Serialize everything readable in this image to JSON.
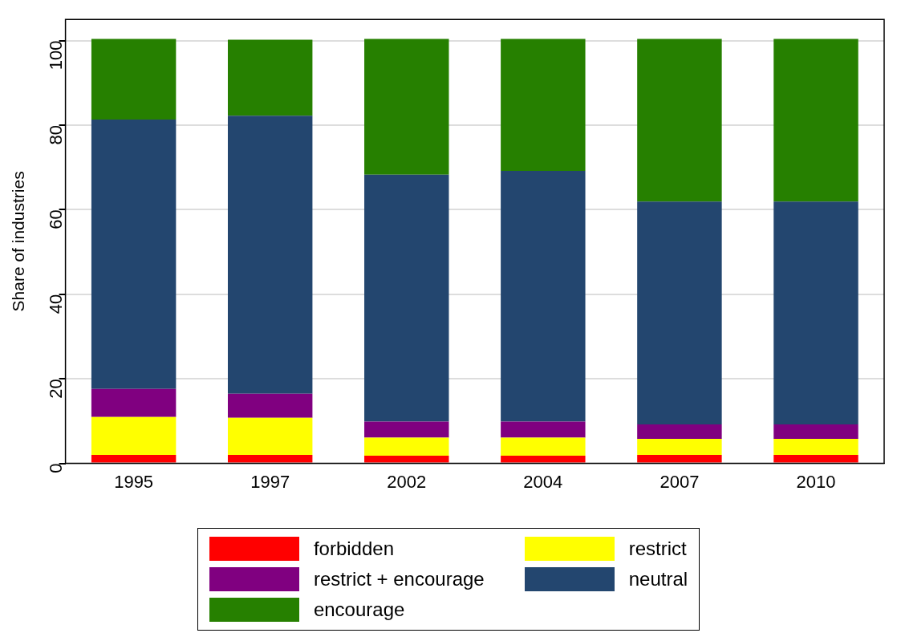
{
  "chart_data": {
    "type": "bar",
    "stacked": true,
    "ylabel": "Share of industries",
    "categories": [
      "1995",
      "1997",
      "2002",
      "2004",
      "2007",
      "2010"
    ],
    "ylim": [
      0,
      105
    ],
    "yticks": [
      0,
      20,
      40,
      60,
      80,
      100
    ],
    "grid": "y",
    "legend": "bottom",
    "series": [
      {
        "name": "forbidden",
        "color": "#ff0000",
        "values": [
          2.0,
          2.0,
          1.8,
          1.8,
          2.0,
          2.0
        ]
      },
      {
        "name": "restrict",
        "color": "#ffff00",
        "values": [
          9.0,
          8.8,
          4.3,
          4.3,
          3.8,
          3.8
        ]
      },
      {
        "name": "restrict + encourage",
        "color": "#800080",
        "values": [
          6.6,
          5.7,
          3.8,
          3.8,
          3.4,
          3.4
        ]
      },
      {
        "name": "neutral",
        "color": "#23466f",
        "values": [
          63.7,
          65.7,
          58.4,
          59.3,
          52.7,
          52.7
        ]
      },
      {
        "name": "encourage",
        "color": "#268000",
        "values": [
          19.1,
          18.0,
          32.1,
          31.2,
          38.5,
          38.5
        ]
      }
    ]
  }
}
